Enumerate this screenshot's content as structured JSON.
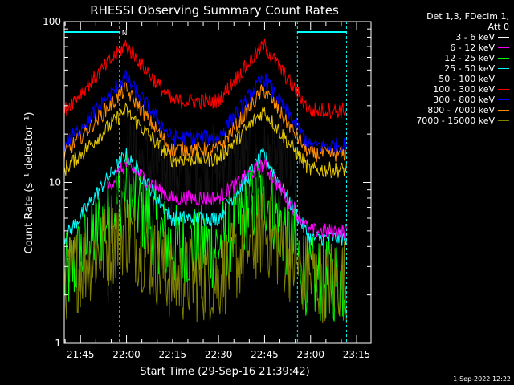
{
  "chart_data": {
    "type": "line",
    "title": "RHESSI Observing Summary Count Rates",
    "xlabel": "Start Time (29-Sep-16 21:39:42)",
    "ylabel": "Count Rate (s⁻¹ detector⁻¹)",
    "yscale": "log",
    "ylim": [
      1,
      100
    ],
    "xlim_minutes": [
      0,
      100
    ],
    "ytick_labels": [
      {
        "value": 1,
        "label": "1"
      },
      {
        "value": 10,
        "label": "10"
      },
      {
        "value": 100,
        "label": "100"
      }
    ],
    "xtick_labels": [
      {
        "minutes": 5.3,
        "label": "21:45"
      },
      {
        "minutes": 20.3,
        "label": "22:00"
      },
      {
        "minutes": 35.3,
        "label": "22:15"
      },
      {
        "minutes": 50.3,
        "label": "22:30"
      },
      {
        "minutes": 65.3,
        "label": "22:45"
      },
      {
        "minutes": 80.3,
        "label": "23:00"
      },
      {
        "minutes": 95.3,
        "label": "23:15"
      }
    ],
    "legend_header": [
      "Det 1,3, FDecim 1,",
      "Att 0"
    ],
    "series": [
      {
        "name": "3 - 6 keV",
        "color": "#000000",
        "start": 14,
        "end": 92,
        "ranges": [
          [
            0,
            0.05
          ],
          [
            20,
            14
          ],
          [
            35,
            12
          ],
          [
            65,
            13
          ],
          [
            75,
            14
          ],
          [
            78,
            0.05
          ]
        ]
      },
      {
        "name": "6 - 12 keV",
        "color": "#ff00ff",
        "start": 14,
        "end": 92,
        "ranges": [
          [
            0,
            4
          ],
          [
            20,
            13
          ],
          [
            35,
            8
          ],
          [
            50,
            8
          ],
          [
            65,
            13
          ],
          [
            80,
            5
          ]
        ]
      },
      {
        "name": "12 - 25 keV",
        "color": "#00ff00",
        "start": 0,
        "end": 92,
        "ranges": [
          [
            0,
            2.5
          ],
          [
            20,
            9
          ],
          [
            35,
            4
          ],
          [
            50,
            4
          ],
          [
            65,
            9
          ],
          [
            80,
            2.5
          ]
        ]
      },
      {
        "name": "25 - 50 keV",
        "color": "#00ffff",
        "start": 0,
        "end": 92,
        "ranges": [
          [
            0,
            4.5
          ],
          [
            20,
            15
          ],
          [
            35,
            6
          ],
          [
            50,
            6
          ],
          [
            65,
            15
          ],
          [
            80,
            4.5
          ]
        ]
      },
      {
        "name": "50 - 100 keV",
        "color": "#e6c800",
        "start": 0,
        "end": 92,
        "ranges": [
          [
            0,
            12
          ],
          [
            20,
            28
          ],
          [
            35,
            14
          ],
          [
            50,
            14
          ],
          [
            65,
            28
          ],
          [
            80,
            12
          ]
        ]
      },
      {
        "name": "100 - 300 keV",
        "color": "#ff0000",
        "start": 0,
        "end": 92,
        "ranges": [
          [
            0,
            28
          ],
          [
            20,
            72
          ],
          [
            35,
            32
          ],
          [
            50,
            32
          ],
          [
            65,
            72
          ],
          [
            80,
            28
          ]
        ]
      },
      {
        "name": "300 - 800 keV",
        "color": "#0000ff",
        "start": 0,
        "end": 92,
        "ranges": [
          [
            0,
            17
          ],
          [
            20,
            45
          ],
          [
            35,
            19
          ],
          [
            50,
            19
          ],
          [
            65,
            45
          ],
          [
            80,
            17
          ]
        ]
      },
      {
        "name": "800 - 7000 keV",
        "color": "#ff8c00",
        "start": 0,
        "end": 92,
        "ranges": [
          [
            0,
            15
          ],
          [
            20,
            38
          ],
          [
            35,
            16
          ],
          [
            50,
            16
          ],
          [
            65,
            38
          ],
          [
            80,
            15
          ]
        ]
      },
      {
        "name": "7000 - 15000 keV",
        "color": "#808000",
        "start": 0,
        "end": 92,
        "ranges": [
          [
            0,
            2.5
          ],
          [
            20,
            5
          ],
          [
            35,
            2.5
          ],
          [
            50,
            2.5
          ],
          [
            65,
            5
          ],
          [
            80,
            2.5
          ]
        ]
      }
    ],
    "night_intervals_minutes": [
      [
        0,
        18
      ],
      [
        76,
        92
      ]
    ],
    "saa_marker_label": "N",
    "grid": false
  },
  "timestamp": "1-Sep-2022 12:22"
}
